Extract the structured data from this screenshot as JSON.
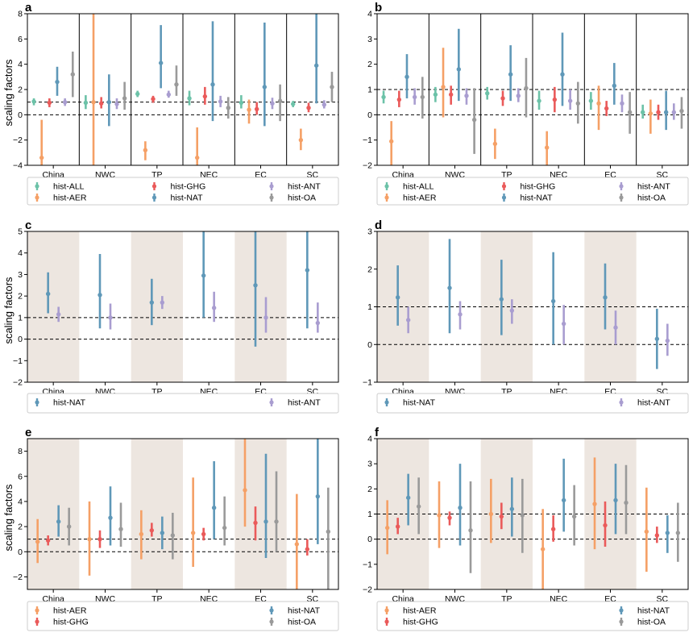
{
  "figure": {
    "ylabel": "scaling factors"
  },
  "colors": {
    "hist-ALL": "#6cc2a8",
    "hist-AER": "#f5a066",
    "hist-GHG": "#ea5a5a",
    "hist-NAT": "#5f98b8",
    "hist-ANT": "#a99dd0",
    "hist-OA": "#9a9a9a",
    "band": "#ede6e0"
  },
  "chart_data": [
    {
      "panel": "a",
      "type": "errorbar",
      "ylim": [
        -4,
        8
      ],
      "yticks": [
        -4,
        -2,
        0,
        2,
        4,
        6,
        8
      ],
      "categories": [
        "China",
        "NWC",
        "TP",
        "NEC",
        "EC",
        "SC"
      ],
      "separators": true,
      "shaded": false,
      "reference_lines": [
        0,
        1
      ],
      "legend_columns": [
        [
          "hist-ALL",
          "hist-AER"
        ],
        [
          "hist-GHG",
          "hist-NAT"
        ],
        [
          "hist-ANT",
          "hist-OA"
        ]
      ],
      "series": [
        {
          "name": "hist-ALL",
          "points": [
            [
              1.05,
              0.75,
              1.3
            ],
            [
              0.95,
              0.45,
              1.55
            ],
            [
              1.65,
              1.4,
              1.9
            ],
            [
              1.3,
              0.75,
              1.9
            ],
            [
              0.95,
              0.5,
              1.55
            ],
            [
              0.85,
              0.6,
              1.1
            ]
          ]
        },
        {
          "name": "hist-AER",
          "points": [
            [
              -3.4,
              -4.0,
              -0.4
            ],
            [
              1.0,
              -4.0,
              8.0
            ],
            [
              -2.8,
              -3.6,
              -2.1
            ],
            [
              -3.4,
              -4.0,
              -1.0
            ],
            [
              0.4,
              -0.7,
              1.2
            ],
            [
              -2.0,
              -2.8,
              -1.1
            ]
          ]
        },
        {
          "name": "hist-GHG",
          "points": [
            [
              0.95,
              0.6,
              1.3
            ],
            [
              0.9,
              0.5,
              1.4
            ],
            [
              1.25,
              0.95,
              1.5
            ],
            [
              1.45,
              0.8,
              2.2
            ],
            [
              0.45,
              0.0,
              1.0
            ],
            [
              0.55,
              0.2,
              0.95
            ]
          ]
        },
        {
          "name": "hist-NAT",
          "points": [
            [
              2.6,
              1.5,
              3.8
            ],
            [
              1.0,
              -0.9,
              3.2
            ],
            [
              4.1,
              2.1,
              7.1
            ],
            [
              2.4,
              -0.5,
              7.4
            ],
            [
              2.2,
              -0.9,
              7.3
            ],
            [
              3.9,
              0.9,
              8.0
            ]
          ]
        },
        {
          "name": "hist-ANT",
          "points": [
            [
              1.0,
              0.7,
              1.3
            ],
            [
              0.85,
              0.45,
              1.3
            ],
            [
              1.6,
              1.35,
              1.9
            ],
            [
              1.05,
              0.6,
              1.5
            ],
            [
              0.9,
              0.45,
              1.35
            ],
            [
              0.8,
              0.5,
              1.15
            ]
          ]
        },
        {
          "name": "hist-OA",
          "points": [
            [
              3.2,
              1.4,
              5.0
            ],
            [
              1.3,
              0.4,
              2.6
            ],
            [
              2.4,
              1.5,
              3.9
            ],
            [
              0.55,
              -0.3,
              1.4
            ],
            [
              1.1,
              -0.5,
              2.4
            ],
            [
              2.2,
              1.0,
              3.4
            ]
          ]
        }
      ]
    },
    {
      "panel": "b",
      "type": "errorbar",
      "ylim": [
        -2,
        4
      ],
      "yticks": [
        -2,
        -1,
        0,
        1,
        2,
        3,
        4
      ],
      "categories": [
        "China",
        "NWC",
        "TP",
        "NEC",
        "EC",
        "SC"
      ],
      "separators": true,
      "shaded": false,
      "reference_lines": [
        0,
        1
      ],
      "legend_columns": [
        [
          "hist-ALL",
          "hist-AER"
        ],
        [
          "hist-GHG",
          "hist-NAT"
        ],
        [
          "hist-ANT",
          "hist-OA"
        ]
      ],
      "series": [
        {
          "name": "hist-ALL",
          "points": [
            [
              0.7,
              0.45,
              0.95
            ],
            [
              0.8,
              0.5,
              1.1
            ],
            [
              0.85,
              0.6,
              1.1
            ],
            [
              0.55,
              0.2,
              0.95
            ],
            [
              0.55,
              0.2,
              0.9
            ],
            [
              0.1,
              -0.15,
              0.4
            ]
          ]
        },
        {
          "name": "hist-AER",
          "points": [
            [
              -1.05,
              -2.0,
              -0.25
            ],
            [
              1.1,
              -0.1,
              2.65
            ],
            [
              -1.15,
              -1.75,
              -0.55
            ],
            [
              -1.3,
              -2.0,
              -0.65
            ],
            [
              0.45,
              -0.6,
              1.15
            ],
            [
              0.05,
              -0.75,
              0.6
            ]
          ]
        },
        {
          "name": "hist-GHG",
          "points": [
            [
              0.6,
              0.3,
              0.95
            ],
            [
              0.8,
              0.4,
              1.15
            ],
            [
              0.65,
              0.35,
              0.95
            ],
            [
              0.6,
              0.1,
              1.1
            ],
            [
              0.25,
              -0.05,
              0.55
            ],
            [
              0.1,
              -0.2,
              0.4
            ]
          ]
        },
        {
          "name": "hist-NAT",
          "points": [
            [
              1.5,
              0.65,
              2.4
            ],
            [
              1.8,
              0.55,
              3.4
            ],
            [
              1.6,
              0.55,
              2.75
            ],
            [
              1.6,
              0.35,
              3.25
            ],
            [
              1.15,
              0.4,
              2.05
            ],
            [
              0.1,
              -0.6,
              0.95
            ]
          ]
        },
        {
          "name": "hist-ANT",
          "points": [
            [
              0.7,
              0.4,
              1.05
            ],
            [
              0.75,
              0.4,
              1.05
            ],
            [
              0.75,
              0.5,
              1.05
            ],
            [
              0.55,
              0.2,
              1.0
            ],
            [
              0.45,
              0.1,
              0.8
            ],
            [
              0.1,
              -0.2,
              0.45
            ]
          ]
        },
        {
          "name": "hist-OA",
          "points": [
            [
              0.7,
              -0.15,
              1.5
            ],
            [
              -0.2,
              -1.55,
              1.05
            ],
            [
              1.05,
              -0.1,
              2.25
            ],
            [
              0.45,
              -0.35,
              1.3
            ],
            [
              0.1,
              -0.75,
              0.9
            ],
            [
              0.15,
              -0.55,
              0.7
            ]
          ]
        }
      ]
    },
    {
      "panel": "c",
      "type": "errorbar",
      "ylim": [
        -2,
        5
      ],
      "yticks": [
        -2,
        -1,
        0,
        1,
        2,
        3,
        4,
        5
      ],
      "categories": [
        "China",
        "NWC",
        "TP",
        "NEC",
        "EC",
        "SC"
      ],
      "separators": false,
      "shaded": true,
      "reference_lines": [
        0,
        1
      ],
      "legend_columns": [
        [
          "hist-NAT"
        ],
        [
          "hist-ANT"
        ]
      ],
      "series": [
        {
          "name": "hist-NAT",
          "points": [
            [
              2.1,
              1.2,
              3.1
            ],
            [
              2.05,
              0.5,
              3.95
            ],
            [
              1.7,
              0.65,
              2.8
            ],
            [
              2.95,
              1.0,
              5.0
            ],
            [
              2.5,
              -0.35,
              5.0
            ],
            [
              3.2,
              0.5,
              5.0
            ]
          ]
        },
        {
          "name": "hist-ANT",
          "points": [
            [
              1.15,
              0.8,
              1.5
            ],
            [
              1.0,
              0.45,
              1.65
            ],
            [
              1.7,
              1.4,
              2.0
            ],
            [
              1.45,
              0.8,
              2.2
            ],
            [
              1.0,
              0.3,
              1.95
            ],
            [
              0.75,
              0.3,
              1.7
            ]
          ]
        }
      ]
    },
    {
      "panel": "d",
      "type": "errorbar",
      "ylim": [
        -1,
        3
      ],
      "yticks": [
        -1,
        0,
        1,
        2,
        3
      ],
      "categories": [
        "China",
        "NWC",
        "TP",
        "NEC",
        "EC",
        "SC"
      ],
      "separators": false,
      "shaded": true,
      "reference_lines": [
        0,
        1
      ],
      "legend_columns": [
        [
          "hist-NAT"
        ],
        [
          "hist-ANT"
        ]
      ],
      "series": [
        {
          "name": "hist-NAT",
          "points": [
            [
              1.25,
              0.5,
              2.1
            ],
            [
              1.5,
              0.3,
              2.8
            ],
            [
              1.2,
              0.25,
              2.25
            ],
            [
              1.15,
              0.0,
              2.45
            ],
            [
              1.25,
              0.4,
              2.15
            ],
            [
              0.15,
              -0.65,
              0.95
            ]
          ]
        },
        {
          "name": "hist-ANT",
          "points": [
            [
              0.65,
              0.3,
              1.0
            ],
            [
              0.8,
              0.4,
              1.15
            ],
            [
              0.9,
              0.55,
              1.2
            ],
            [
              0.55,
              0.0,
              1.05
            ],
            [
              0.45,
              0.0,
              0.9
            ],
            [
              0.1,
              -0.3,
              0.55
            ]
          ]
        }
      ]
    },
    {
      "panel": "e",
      "type": "errorbar",
      "ylim": [
        -3,
        9
      ],
      "yticks": [
        -2,
        0,
        2,
        4,
        6,
        8
      ],
      "categories": [
        "China",
        "NWC",
        "TP",
        "NEC",
        "EC",
        "SC"
      ],
      "separators": false,
      "shaded": true,
      "reference_lines": [
        0,
        1
      ],
      "legend_columns": [
        [
          "hist-AER",
          "hist-GHG"
        ],
        [
          "hist-NAT",
          "hist-OA"
        ]
      ],
      "series": [
        {
          "name": "hist-AER",
          "points": [
            [
              0.8,
              -0.9,
              2.6
            ],
            [
              1.0,
              -1.9,
              4.0
            ],
            [
              1.4,
              -0.6,
              3.3
            ],
            [
              1.5,
              -1.2,
              5.9
            ],
            [
              4.9,
              2.0,
              9.0
            ],
            [
              0.6,
              -3.0,
              4.6
            ]
          ]
        },
        {
          "name": "hist-GHG",
          "points": [
            [
              0.9,
              0.5,
              1.3
            ],
            [
              1.0,
              0.3,
              1.7
            ],
            [
              1.7,
              1.2,
              2.3
            ],
            [
              1.4,
              0.9,
              1.9
            ],
            [
              2.3,
              0.9,
              3.6
            ],
            [
              0.2,
              -0.3,
              1.0
            ]
          ]
        },
        {
          "name": "hist-NAT",
          "points": [
            [
              2.4,
              1.2,
              3.7
            ],
            [
              2.7,
              0.5,
              5.2
            ],
            [
              1.5,
              0.2,
              2.8
            ],
            [
              3.5,
              1.0,
              7.2
            ],
            [
              2.4,
              -0.5,
              7.8
            ],
            [
              4.4,
              0.6,
              9.0
            ]
          ]
        },
        {
          "name": "hist-OA",
          "points": [
            [
              2.0,
              0.5,
              3.5
            ],
            [
              1.8,
              0.4,
              3.9
            ],
            [
              1.3,
              -0.6,
              3.1
            ],
            [
              1.9,
              0.5,
              4.4
            ],
            [
              2.4,
              0.0,
              6.4
            ],
            [
              1.6,
              -3.0,
              5.1
            ]
          ]
        }
      ]
    },
    {
      "panel": "f",
      "type": "errorbar",
      "ylim": [
        -2,
        4
      ],
      "yticks": [
        -2,
        -1,
        0,
        1,
        2,
        3,
        4
      ],
      "categories": [
        "China",
        "NWC",
        "TP",
        "NEC",
        "EC",
        "SC"
      ],
      "separators": false,
      "shaded": true,
      "reference_lines": [
        0,
        1
      ],
      "legend_columns": [
        [
          "hist-AER",
          "hist-GHG"
        ],
        [
          "hist-NAT",
          "hist-OA"
        ]
      ],
      "series": [
        {
          "name": "hist-AER",
          "points": [
            [
              0.45,
              -0.6,
              1.55
            ],
            [
              0.95,
              -0.35,
              2.3
            ],
            [
              1.0,
              -0.15,
              2.4
            ],
            [
              -0.4,
              -2.0,
              1.2
            ],
            [
              1.4,
              -0.4,
              3.25
            ],
            [
              0.3,
              -1.3,
              2.05
            ]
          ]
        },
        {
          "name": "hist-GHG",
          "points": [
            [
              0.5,
              0.2,
              0.85
            ],
            [
              0.85,
              0.55,
              1.1
            ],
            [
              0.9,
              0.4,
              1.45
            ],
            [
              0.4,
              -0.1,
              0.95
            ],
            [
              0.55,
              -0.3,
              1.5
            ],
            [
              0.15,
              -0.15,
              0.5
            ]
          ]
        },
        {
          "name": "hist-NAT",
          "points": [
            [
              1.65,
              0.55,
              2.6
            ],
            [
              1.25,
              -0.25,
              3.0
            ],
            [
              1.2,
              0.1,
              2.45
            ],
            [
              1.55,
              0.3,
              3.2
            ],
            [
              1.55,
              0.2,
              3.0
            ],
            [
              0.25,
              -0.55,
              0.95
            ]
          ]
        },
        {
          "name": "hist-OA",
          "points": [
            [
              1.3,
              0.2,
              2.45
            ],
            [
              0.35,
              -1.35,
              2.3
            ],
            [
              0.95,
              -0.55,
              2.4
            ],
            [
              0.9,
              -0.25,
              2.15
            ],
            [
              1.45,
              0.2,
              2.95
            ],
            [
              0.25,
              -0.9,
              1.45
            ]
          ]
        }
      ]
    }
  ]
}
